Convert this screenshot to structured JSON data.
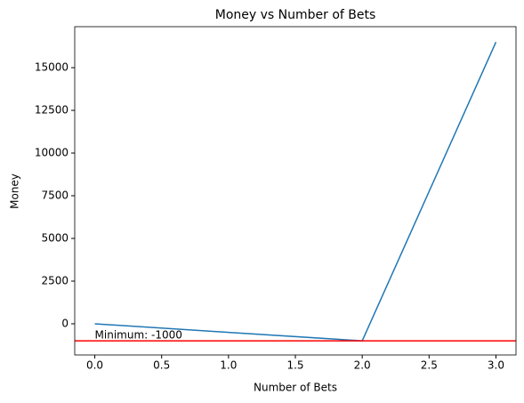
{
  "chart_data": {
    "type": "line",
    "title": "Money vs Number of Bets",
    "xlabel": "Number of Bets",
    "ylabel": "Money",
    "x": [
      0,
      1,
      2,
      3
    ],
    "series": [
      {
        "name": "Money",
        "color": "#1f77b4",
        "values": [
          0,
          -500,
          -1000,
          16500
        ]
      }
    ],
    "hline": {
      "value": -1000,
      "color": "#ff0000"
    },
    "annotation": {
      "text": "Minimum: -1000",
      "x": 0,
      "y": -1000
    },
    "xlim": [
      -0.15,
      3.15
    ],
    "xticks": [
      {
        "value": 0,
        "label": "0.0"
      },
      {
        "value": 0.5,
        "label": "0.5"
      },
      {
        "value": 1,
        "label": "1.0"
      },
      {
        "value": 1.5,
        "label": "1.5"
      },
      {
        "value": 2,
        "label": "2.0"
      },
      {
        "value": 2.5,
        "label": "2.5"
      },
      {
        "value": 3,
        "label": "3.0"
      }
    ],
    "ylim": [
      -1825,
      17400
    ],
    "yticks": [
      0,
      2500,
      5000,
      7500,
      10000,
      12500,
      15000
    ],
    "grid": false
  }
}
